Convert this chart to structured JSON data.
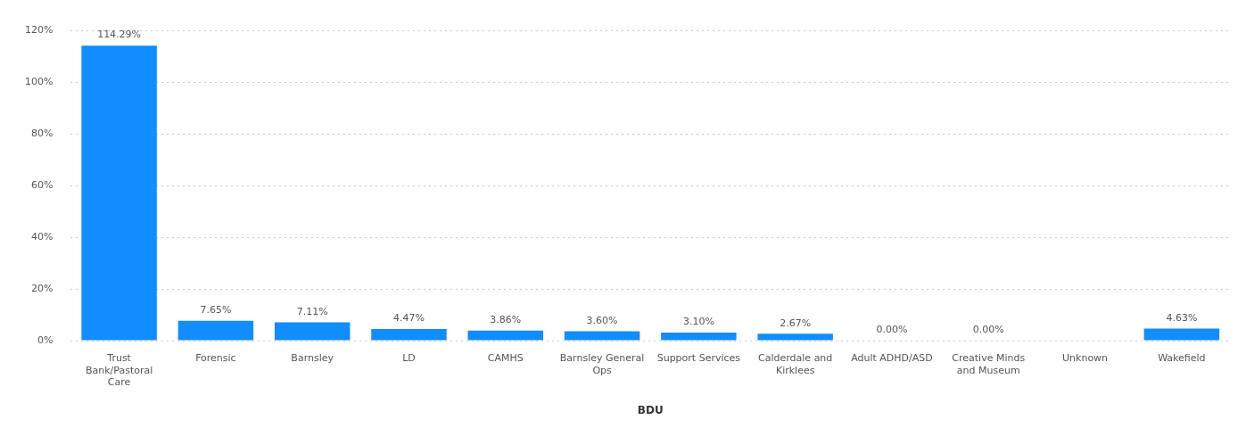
{
  "chart_data": {
    "type": "bar",
    "xlabel": "BDU",
    "categories": [
      "Trust Bank/Pastoral Care",
      "Forensic",
      "Barnsley",
      "LD",
      "CAMHS",
      "Barnsley General Ops",
      "Support Services",
      "Calderdale and Kirklees",
      "Adult ADHD/ASD",
      "Creative Minds and Museum",
      "Unknown",
      "Wakefield"
    ],
    "values": [
      114.29,
      7.65,
      7.11,
      4.47,
      3.86,
      3.6,
      3.1,
      2.67,
      0,
      0,
      null,
      4.63
    ],
    "value_labels": [
      "114.29%",
      "7.65%",
      "7.11%",
      "4.47%",
      "3.86%",
      "3.60%",
      "3.10%",
      "2.67%",
      "0.00%",
      "0.00%",
      null,
      "4.63%"
    ],
    "color": "#118dff",
    "ylim": [
      0,
      120
    ],
    "yticks": [
      {
        "value": 0,
        "label": "0%"
      },
      {
        "value": 20,
        "label": "20%"
      },
      {
        "value": 40,
        "label": "40%"
      },
      {
        "value": 60,
        "label": "60%"
      },
      {
        "value": 80,
        "label": "80%"
      },
      {
        "value": 100,
        "label": "100%"
      },
      {
        "value": 120,
        "label": "120%"
      }
    ],
    "grid": "y"
  }
}
